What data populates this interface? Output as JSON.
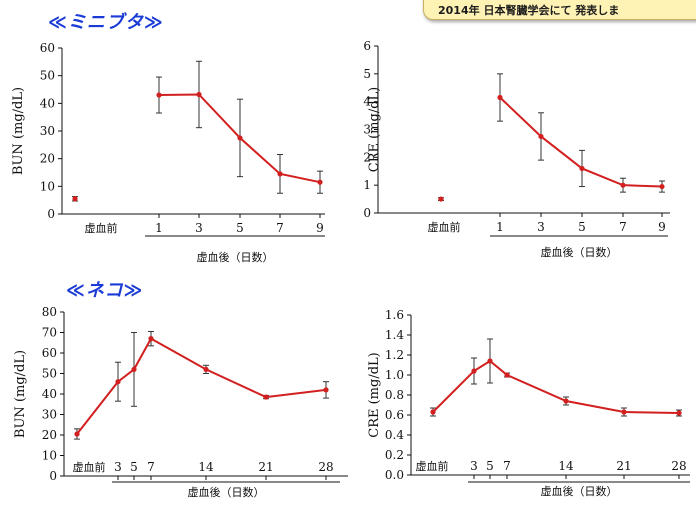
{
  "banner": {
    "text": "2014年 日本腎臓学会にて 発表しま"
  },
  "sections": [
    {
      "title": "≪ミニブタ≫"
    },
    {
      "title": "≪ネコ≫"
    }
  ],
  "colors": {
    "series": "#d21f1f",
    "axis": "#111111",
    "title": "#1a3bd6"
  },
  "chart_data": [
    {
      "type": "line",
      "ylabel": "BUN (mg/dL)",
      "xlabel_pre": "虚血前",
      "xlabel_post": "虚血後（日数）",
      "ylim": [
        0,
        60
      ],
      "yticks": [
        "0",
        "10",
        "20",
        "30",
        "40",
        "50",
        "60"
      ],
      "xticks": [
        "1",
        "3",
        "5",
        "7",
        "9"
      ],
      "points": [
        {
          "x": "虚血前",
          "y": 5.5,
          "err": 0.8
        },
        {
          "x": "1",
          "y": 43,
          "err": 6.5
        },
        {
          "x": "3",
          "y": 43.2,
          "err": 12
        },
        {
          "x": "5",
          "y": 27.5,
          "err": 14
        },
        {
          "x": "7",
          "y": 14.5,
          "err": 7
        },
        {
          "x": "9",
          "y": 11.5,
          "err": 4
        }
      ]
    },
    {
      "type": "line",
      "ylabel": "CRE (mg/dL)",
      "xlabel_pre": "虚血前",
      "xlabel_post": "虚血後（日数）",
      "ylim": [
        0,
        6
      ],
      "yticks": [
        "0",
        "1",
        "2",
        "3",
        "4",
        "5",
        "6"
      ],
      "xticks": [
        "1",
        "3",
        "5",
        "7",
        "9"
      ],
      "points": [
        {
          "x": "虚血前",
          "y": 0.5,
          "err": 0.05
        },
        {
          "x": "1",
          "y": 4.15,
          "err": 0.85
        },
        {
          "x": "3",
          "y": 2.75,
          "err": 0.85
        },
        {
          "x": "5",
          "y": 1.6,
          "err": 0.65
        },
        {
          "x": "7",
          "y": 1.0,
          "err": 0.25
        },
        {
          "x": "9",
          "y": 0.95,
          "err": 0.2
        }
      ]
    },
    {
      "type": "line",
      "ylabel": "BUN (mg/dL)",
      "xlabel_pre": "虚血前",
      "xlabel_post": "虚血後（日数）",
      "ylim": [
        0,
        80
      ],
      "yticks": [
        "0",
        "10",
        "20",
        "30",
        "40",
        "50",
        "60",
        "70",
        "80"
      ],
      "xticks": [
        "3",
        "5",
        "7",
        "14",
        "21",
        "28"
      ],
      "points": [
        {
          "x": "虚血前",
          "y": 20.5,
          "err": 2.5
        },
        {
          "x": "3",
          "y": 46,
          "err": 9.5
        },
        {
          "x": "5",
          "y": 52,
          "err": 18
        },
        {
          "x": "7",
          "y": 67,
          "err": 3.5
        },
        {
          "x": "14",
          "y": 52,
          "err": 2
        },
        {
          "x": "21",
          "y": 38.5,
          "err": 0.8
        },
        {
          "x": "28",
          "y": 42,
          "err": 4
        }
      ]
    },
    {
      "type": "line",
      "ylabel": "CRE (mg/dL)",
      "xlabel_pre": "虚血前",
      "xlabel_post": "虚血後（日数）",
      "ylim": [
        0,
        1.6
      ],
      "yticks": [
        "0.0",
        "0.2",
        "0.4",
        "0.6",
        "0.8",
        "1.0",
        "1.2",
        "1.4",
        "1.6"
      ],
      "xticks": [
        "3",
        "5",
        "7",
        "14",
        "21",
        "28"
      ],
      "points": [
        {
          "x": "虚血前",
          "y": 0.63,
          "err": 0.04
        },
        {
          "x": "3",
          "y": 1.04,
          "err": 0.13
        },
        {
          "x": "5",
          "y": 1.14,
          "err": 0.22
        },
        {
          "x": "7",
          "y": 1.0,
          "err": 0.02
        },
        {
          "x": "14",
          "y": 0.74,
          "err": 0.04
        },
        {
          "x": "21",
          "y": 0.63,
          "err": 0.04
        },
        {
          "x": "28",
          "y": 0.62,
          "err": 0.03
        }
      ]
    }
  ]
}
